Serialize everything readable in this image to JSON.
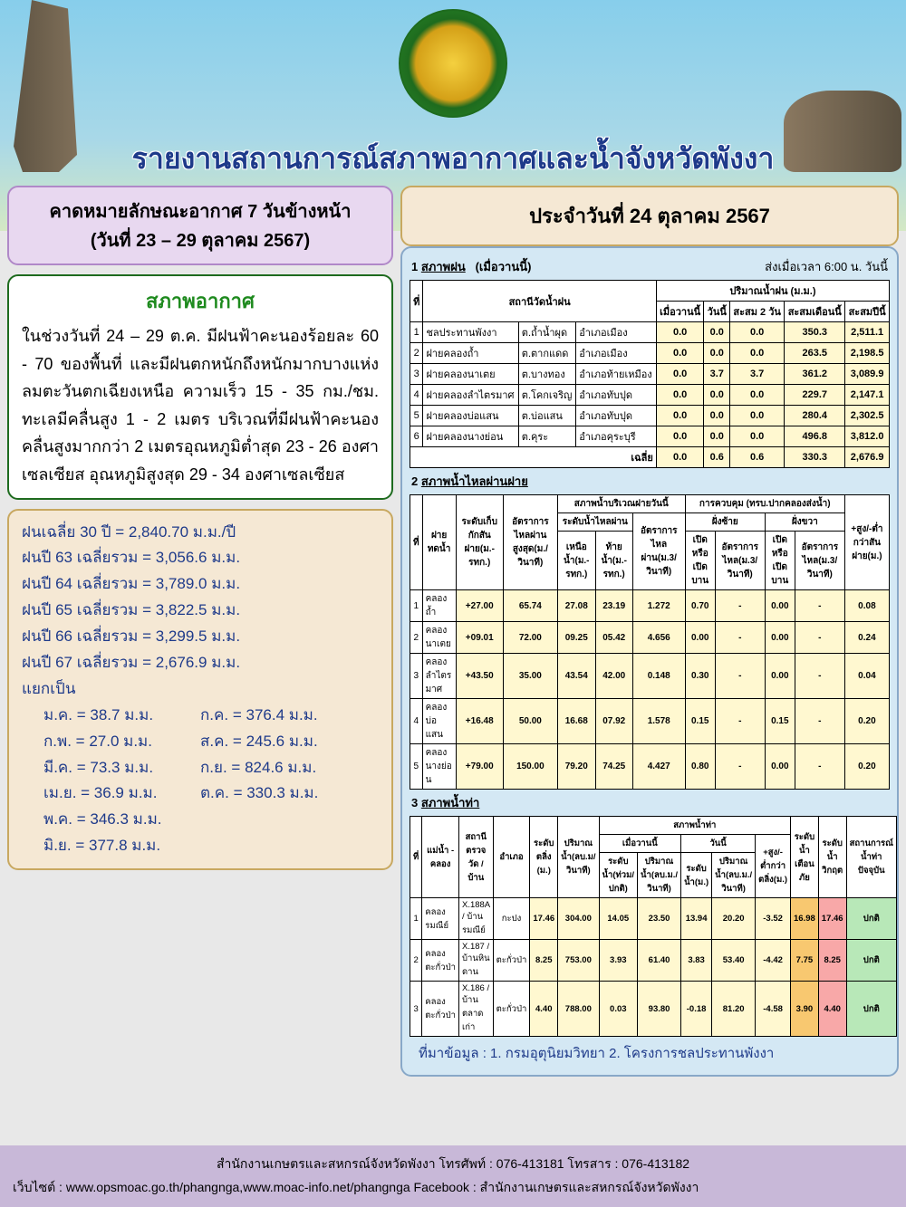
{
  "header": {
    "title": "รายงานสถานการณ์สภาพอากาศและน้ำจังหวัดพังงา"
  },
  "forecast_box": {
    "line1": "คาดหมายลักษณะอากาศ 7 วันข้างหน้า",
    "line2": "(วันที่ 23 – 29 ตุลาคม 2567)"
  },
  "date_box": "ประจำวันที่ 24 ตุลาคม 2567",
  "weather": {
    "title": "สภาพอากาศ",
    "body": "ในช่วงวันที่ 24 – 29 ต.ค. มีฝนฟ้าคะนองร้อยละ 60 - 70 ของพื้นที่ และมีฝนตกหนักถึงหนักมากบางแห่งลมตะวันตกเฉียงเหนือ ความเร็ว 15 - 35 กม./ชม. ทะเลมีคลื่นสูง 1 - 2 เมตร บริเวณที่มีฝนฟ้าคะนองคลื่นสูงมากกว่า 2 เมตรอุณหภูมิต่ำสุด 23 - 26 องศาเซลเซียส อุณหภูมิสูงสุด 29 - 34 องศาเซลเซียส"
  },
  "rain_stats": {
    "avg30": "ฝนเฉลี่ย 30 ปี = 2,840.70 ม.ม./ปี",
    "y63": "ฝนปี 63 เฉลี่ยรวม = 3,056.6 ม.ม.",
    "y64": "ฝนปี 64 เฉลี่ยรวม = 3,789.0 ม.ม.",
    "y65": "ฝนปี 65 เฉลี่ยรวม = 3,822.5 ม.ม.",
    "y66": "ฝนปี 66 เฉลี่ยรวม = 3,299.5 ม.ม.",
    "y67": "ฝนปี 67 เฉลี่ยรวม = 2,676.9 ม.ม.",
    "split": "แยกเป็น",
    "months": {
      "jan": "ม.ค.  =   38.7 ม.ม.",
      "feb": "ก.พ.  =   27.0 ม.ม.",
      "mar": "มี.ค.  =   73.3 ม.ม.",
      "apr": "เม.ย. =   36.9 ม.ม.",
      "may": "พ.ค.  = 346.3 ม.ม.",
      "jun": "มิ.ย.  = 377.8 ม.ม.",
      "jul": "ก.ค.  = 376.4 ม.ม.",
      "aug": "ส.ค.  = 245.6 ม.ม.",
      "sep": "ก.ย.  = 824.6 ม.ม.",
      "oct": "ต.ค.  = 330.3 ม.ม."
    }
  },
  "sec1": {
    "num": "1",
    "title": "สภาพฝน",
    "note": "(เมื่อวานนี้)",
    "right": "ส่งเมื่อเวลา  6:00 น.  วันนี้",
    "h": {
      "no": "ที่",
      "station": "สถานีวัดน้ำฝน",
      "rain": "ปริมาณน้ำฝน (ม.ม.)",
      "yest": "เมื่อวานนี้",
      "today": "วันนี้",
      "sum2": "สะสม 2 วัน",
      "summ": "สะสมเดือนนี้",
      "sumy": "สะสมปีนี้"
    },
    "rows": [
      {
        "n": "1",
        "s": "ชลประทานพังงา",
        "l": "ต.ถ้ำน้ำผุด",
        "d": "อำเภอเมือง",
        "c1": "0.0",
        "c2": "0.0",
        "c3": "0.0",
        "c4": "350.3",
        "c5": "2,511.1"
      },
      {
        "n": "2",
        "s": "ฝายคลองถ้ำ",
        "l": "ต.ตากแดด",
        "d": "อำเภอเมือง",
        "c1": "0.0",
        "c2": "0.0",
        "c3": "0.0",
        "c4": "263.5",
        "c5": "2,198.5"
      },
      {
        "n": "3",
        "s": "ฝายคลองนาเตย",
        "l": "ต.บางทอง",
        "d": "อำเภอท้ายเหมือง",
        "c1": "0.0",
        "c2": "3.7",
        "c3": "3.7",
        "c4": "361.2",
        "c5": "3,089.9"
      },
      {
        "n": "4",
        "s": "ฝายคลองลำไตรมาศ",
        "l": "ต.โคกเจริญ",
        "d": "อำเภอทับปุด",
        "c1": "0.0",
        "c2": "0.0",
        "c3": "0.0",
        "c4": "229.7",
        "c5": "2,147.1"
      },
      {
        "n": "5",
        "s": "ฝายคลองบ่อแสน",
        "l": "ต.บ่อแสน",
        "d": "อำเภอทับปุด",
        "c1": "0.0",
        "c2": "0.0",
        "c3": "0.0",
        "c4": "280.4",
        "c5": "2,302.5"
      },
      {
        "n": "6",
        "s": "ฝายคลองนางย่อน",
        "l": "ต.คุระ",
        "d": "อำเภอคุระบุรี",
        "c1": "0.0",
        "c2": "0.0",
        "c3": "0.0",
        "c4": "496.8",
        "c5": "3,812.0"
      }
    ],
    "avg": {
      "label": "เฉลี่ย",
      "c1": "0.0",
      "c2": "0.6",
      "c3": "0.6",
      "c4": "330.3",
      "c5": "2,676.9"
    }
  },
  "sec2": {
    "num": "2",
    "title": "สภาพน้ำไหลผ่านฝาย",
    "h": {
      "no": "ที่",
      "dam": "ฝายทดน้ำ",
      "level": "ระดับเก็บกักสันฝาย(ม.-รทก.)",
      "max": "อัตราการไหลผ่านสูงสุด(ม./วินาที)",
      "area": "สภาพน้ำบริเวณฝายวันนี้",
      "lvl2": "ระดับน้ำไหลผ่าน",
      "up": "เหนือน้ำ(ม.-รทก.)",
      "down": "ท้ายน้ำ(ม.-รทก.)",
      "rate": "อัตราการไหลผ่าน(ม.3/วินาที)",
      "ctrl": "การควบคุม (ทรบ.ปากคลองส่งน้ำ)",
      "lb": "ฝั่งซ้าย",
      "rb": "ฝั่งขวา",
      "oc": "เปิดหรือเปิดบาน",
      "flow": "อัตราการไหล(ม.3/วินาที)",
      "diff": "+สูง/-ต่ำกว่าสันฝาย(ม.)"
    },
    "rows": [
      {
        "n": "1",
        "d": "คลองถ้ำ",
        "l": "+27.00",
        "m": "65.74",
        "u": "27.08",
        "dn": "23.19",
        "r": "1.272",
        "lr": "0.70",
        "lo": "-",
        "lf": "0.00",
        "ro": "-",
        "rf": "0.08"
      },
      {
        "n": "2",
        "d": "คลองนาเตย",
        "l": "+09.01",
        "m": "72.00",
        "u": "09.25",
        "dn": "05.42",
        "r": "4.656",
        "lr": "0.00",
        "lo": "-",
        "lf": "0.00",
        "ro": "-",
        "rf": "0.24"
      },
      {
        "n": "3",
        "d": "คลองลำไตรมาศ",
        "l": "+43.50",
        "m": "35.00",
        "u": "43.54",
        "dn": "42.00",
        "r": "0.148",
        "lr": "0.30",
        "lo": "-",
        "lf": "0.00",
        "ro": "-",
        "rf": "0.04"
      },
      {
        "n": "4",
        "d": "คลองบ่อแสน",
        "l": "+16.48",
        "m": "50.00",
        "u": "16.68",
        "dn": "07.92",
        "r": "1.578",
        "lr": "0.15",
        "lo": "-",
        "lf": "0.15",
        "ro": "-",
        "rf": "0.20"
      },
      {
        "n": "5",
        "d": "คลองนางย่อน",
        "l": "+79.00",
        "m": "150.00",
        "u": "79.20",
        "dn": "74.25",
        "r": "4.427",
        "lr": "0.80",
        "lo": "-",
        "lf": "0.00",
        "ro": "-",
        "rf": "0.20"
      }
    ]
  },
  "sec3": {
    "num": "3",
    "title": "สภาพน้ำท่า",
    "h": {
      "no": "ที่",
      "river": "แม่น้ำ - คลอง",
      "station": "สถานีตรวจวัด / บ้าน",
      "dist": "อำเภอ",
      "bank": "ระดับตลิ่ง (ม.)",
      "q": "ปริมาณน้ำ(ลบ.ม/วินาที)",
      "water": "สภาพน้ำท่า",
      "yest": "เมื่อวานนี้",
      "today": "วันนี้",
      "lvl": "ระดับน้ำ(ม.)",
      "vol": "ปริมาณน้ำ(ลบ.ม./วินาที)",
      "ch": "ระดับน้ำ(ท่วม/ปกติ)",
      "diff": "+สูง/-ต่ำกว่าตลิ่ง(ม.)",
      "pm": "ระดับน้ำเตือนภัย",
      "cr": "ระดับน้ำวิกฤต",
      "st": "สถานการณ์น้ำท่าปัจจุบัน"
    },
    "rows": [
      {
        "n": "1",
        "r": "คลองรมณีย์",
        "s": "X.188A / บ้านรมณีย์",
        "d": "กะปง",
        "b": "17.46",
        "q": "304.00",
        "yl": "14.05",
        "yv": "23.50",
        "tl": "13.94",
        "tv": "20.20",
        "df": "-3.52",
        "pm": "16.98",
        "cr": "17.46",
        "st": "ปกติ"
      },
      {
        "n": "2",
        "r": "คลองตะกั่วป่า",
        "s": "X.187 / บ้านหินดาน",
        "d": "ตะกั่วป่า",
        "b": "8.25",
        "q": "753.00",
        "yl": "3.93",
        "yv": "61.40",
        "tl": "3.83",
        "tv": "53.40",
        "df": "-4.42",
        "pm": "7.75",
        "cr": "8.25",
        "st": "ปกติ"
      },
      {
        "n": "3",
        "r": "คลองตะกั่วป่า",
        "s": "X.186 / บ้านตลาดเก่า",
        "d": "ตะกั่วป่า",
        "b": "4.40",
        "q": "788.00",
        "yl": "0.03",
        "yv": "93.80",
        "tl": "-0.18",
        "tv": "81.20",
        "df": "-4.58",
        "pm": "3.90",
        "cr": "4.40",
        "st": "ปกติ"
      }
    ]
  },
  "source": "ที่มาข้อมูล : 1. กรมอุตุนิยมวิทยา 2. โครงการชลประทานพังงา",
  "footer": {
    "l1": "สำนักงานเกษตรและสหกรณ์จังหวัดพังงา โทรศัพท์ : 076-413181   โทรสาร : 076-413182",
    "l2": "เว็บไซต์ : www.opsmoac.go.th/phangnga,www.moac-info.net/phangnga  Facebook : สำนักงานเกษตรและสหกรณ์จังหวัดพังงา"
  }
}
